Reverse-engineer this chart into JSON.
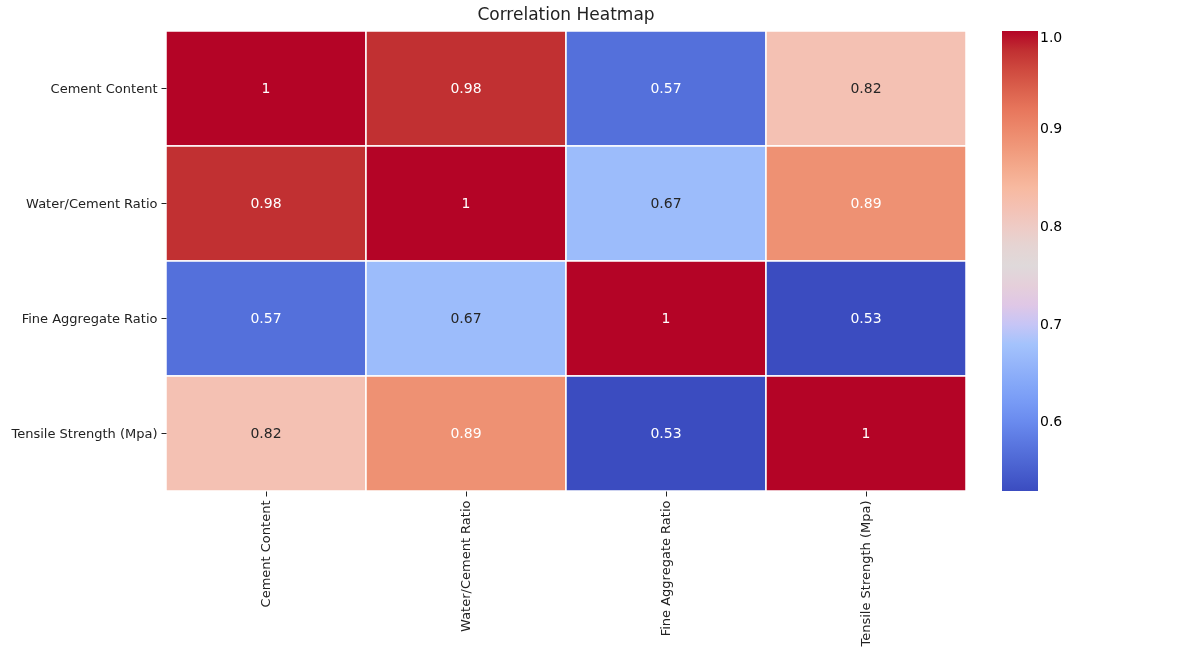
{
  "chart_data": {
    "type": "heatmap",
    "title": "Correlation Heatmap",
    "categories": [
      "Cement Content",
      "Water/Cement Ratio",
      "Fine Aggregate Ratio",
      "Tensile Strength (Mpa)"
    ],
    "y_categories": [
      "Cement Content",
      "Water/Cement Ratio",
      "Fine Aggregate Ratio",
      "Tensile Strength (Mpa)"
    ],
    "cells": [
      [
        1,
        0.98,
        0.57,
        0.82
      ],
      [
        0.98,
        1,
        0.67,
        0.89
      ],
      [
        0.57,
        0.67,
        1,
        0.53
      ],
      [
        0.82,
        0.89,
        0.53,
        1
      ]
    ],
    "data_labels": true,
    "clim": [
      0.53,
      1
    ],
    "cticks": [
      0.6,
      0.7,
      0.8,
      0.9,
      {
        "value": 1,
        "label": "1.0"
      }
    ]
  }
}
